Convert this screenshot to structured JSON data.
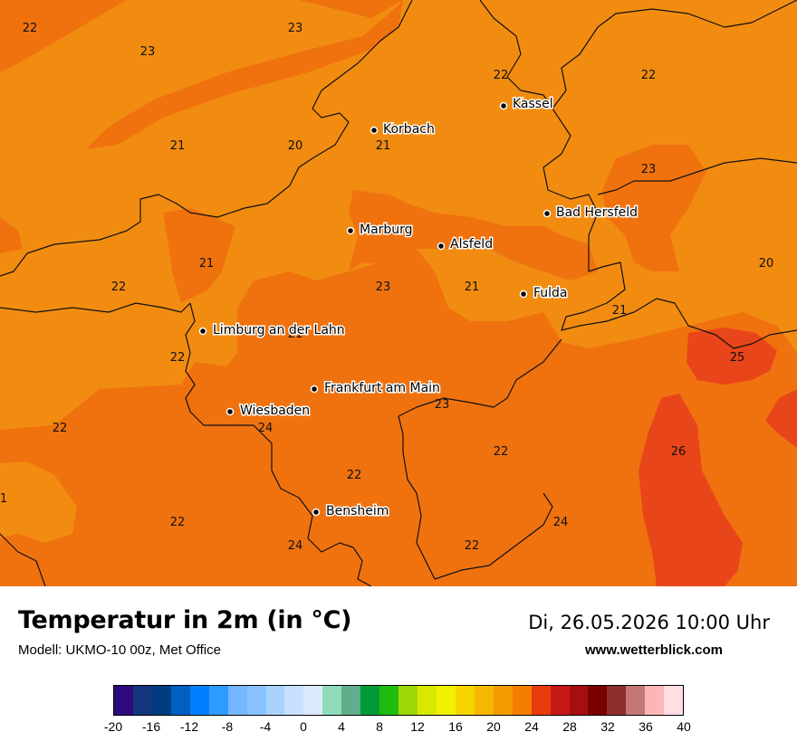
{
  "header": {
    "title": "Temperatur in 2m (in °C)",
    "model": "Modell: UKMO-10 00z, Met Office",
    "datetime": "Di, 26.05.2026 10:00 Uhr",
    "site": "www.wetterblick.com"
  },
  "cities": [
    "Kassel",
    "Korbach",
    "Bad Hersfeld",
    "Marburg",
    "Alsfeld",
    "Fulda",
    "Limburg an der Lahn",
    "Frankfurt am Main",
    "Wiesbaden",
    "Bensheim"
  ],
  "temperature_values": [
    "22",
    "23",
    "23",
    "22",
    "22",
    "21",
    "20",
    "21",
    "23",
    "21",
    "20",
    "22",
    "23",
    "21",
    "21",
    "22",
    "21",
    "25",
    "22",
    "23",
    "24",
    "23",
    "22",
    "26",
    "22",
    "22",
    "24",
    "24",
    "22",
    "1"
  ],
  "legend": {
    "ticks": [
      "-20",
      "-16",
      "-12",
      "-8",
      "-4",
      "0",
      "4",
      "8",
      "12",
      "16",
      "20",
      "24",
      "28",
      "32",
      "36",
      "40"
    ],
    "colors": [
      "#2e0a7e",
      "#13357d",
      "#003c82",
      "#005fbf",
      "#0080ff",
      "#2d9bff",
      "#72b7ff",
      "#8ac3ff",
      "#a9d2ff",
      "#c7e1ff",
      "#dceaff",
      "#8fdcb8",
      "#5fae8d",
      "#009a36",
      "#20bc10",
      "#9ed808",
      "#d8e800",
      "#f0f000",
      "#f5d400",
      "#f4b800",
      "#f29b00",
      "#f47e00",
      "#e83c0c",
      "#c71818",
      "#a60f12",
      "#7a0000",
      "#8e2f2d",
      "#c47777",
      "#fcb6b6",
      "#ffdfe2"
    ]
  },
  "fill_colors": {
    "t20_22": "#f28c10",
    "t22_24": "#f0720f",
    "t24_26": "#e8461a"
  }
}
